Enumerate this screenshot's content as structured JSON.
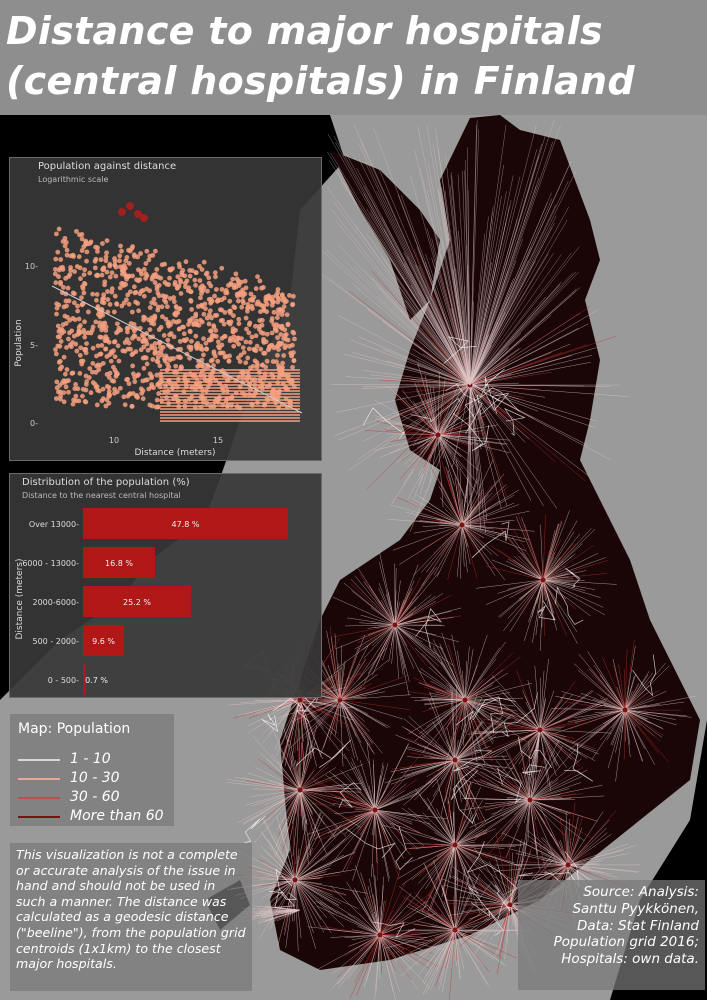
{
  "title_line1": "Distance to major hospitals",
  "title_line2": "(central hospitals) in Finland",
  "scatter": {
    "title": "Population against distance",
    "subtitle": "Logarithmic scale",
    "ylabel": "Population",
    "xlabel": "Distance (meters)",
    "xticks": [
      "10",
      "15"
    ],
    "yticks": [
      "0-",
      "5-",
      "10-"
    ]
  },
  "distribution": {
    "title": "Distribution of the population (%)",
    "subtitle": "Distance to the nearest central hospital",
    "ylabel": "Distance (meters)",
    "bar_color": "#b01818"
  },
  "chart_data": [
    {
      "type": "scatter",
      "title": "Population against distance",
      "subtitle": "Logarithmic scale",
      "xlabel": "Distance (meters)",
      "ylabel": "Population",
      "x_ticks": [
        10,
        15
      ],
      "y_ticks": [
        0,
        5,
        10
      ],
      "point_color": "#f4a080",
      "trend_line_color": "#cccccc"
    },
    {
      "type": "bar",
      "orientation": "horizontal",
      "title": "Distribution of the population (%)",
      "subtitle": "Distance to the nearest central hospital",
      "ylabel": "Distance (meters)",
      "categories": [
        "Over 13000",
        "6000 - 13000",
        "2000-6000",
        "500 - 2000",
        "0 - 500"
      ],
      "values": [
        47.8,
        16.8,
        25.2,
        9.6,
        0.7
      ],
      "labels": [
        "47.8 %",
        "16.8 %",
        "25.2 %",
        "9.6 %",
        "0.7 %"
      ]
    }
  ],
  "legend": {
    "title": "Map: Population",
    "items": [
      {
        "label": "1 - 10",
        "color": "#d8d8d8"
      },
      {
        "label": "10 - 30",
        "color": "#e8a898"
      },
      {
        "label": "30 - 60",
        "color": "#c05050"
      },
      {
        "label": "More than 60",
        "color": "#7a1010"
      }
    ]
  },
  "note_text": "This visualization is not a complete or accurate analysis of the issue in hand and should not be used in such a manner. The distance was calculated as a geodesic distance (\"beeline\"), from the population grid centroids (1x1km) to the closest major hospitals.",
  "source_lines": [
    "Source: Analysis:",
    "Santtu Pyykkönen,",
    "Data: Stat Finland",
    "Population grid 2016;",
    "Hospitals: own data."
  ],
  "colors": {
    "sea": "#9a9a9a",
    "land": "#000000",
    "finland": "#1a0606",
    "ray": "#e0c4c4",
    "ray_dense": "#c03030",
    "boundary": "#ffffff"
  }
}
